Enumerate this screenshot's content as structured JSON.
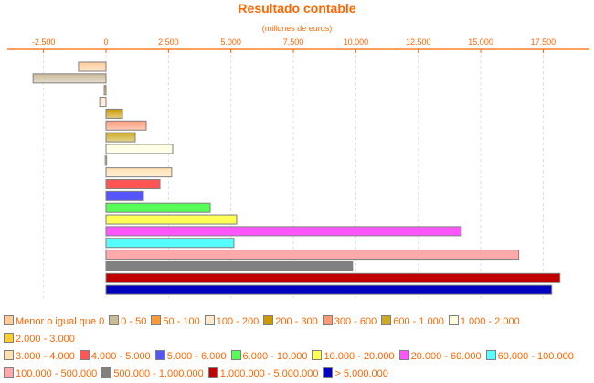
{
  "chart_data": {
    "type": "bar",
    "orientation": "horizontal",
    "title": "Resultado contable",
    "subtitle": "(millones de euros)",
    "xlim": [
      -3950,
      19350
    ],
    "ticks": [
      -2500,
      0,
      2500,
      5000,
      7500,
      10000,
      12500,
      15000,
      17500
    ],
    "tick_labels": [
      "-2.500",
      "0",
      "2.500",
      "5.000",
      "7.500",
      "10.000",
      "12.500",
      "15.000",
      "17.500"
    ],
    "grid": true,
    "legend_position": "bottom",
    "categories": [
      "Menor o igual que 0",
      "0 - 50",
      "50 - 100",
      "100 - 200",
      "200 - 300",
      "300 - 600",
      "600 - 1.000",
      "1.000 - 2.000",
      "2.000 - 3.000",
      "3.000 - 4.000",
      "4.000 - 5.000",
      "5.000 - 6.000",
      "6.000 - 10.000",
      "10.000 - 20.000",
      "20.000 - 60.000",
      "60.000 - 100.000",
      "100.000 - 500.000",
      "500.000 - 1.000.000",
      "1.000.000 - 5.000.000",
      "> 5.000.000"
    ],
    "values": [
      -1100,
      -2920,
      -70,
      -250,
      660,
      1610,
      1170,
      2670,
      -30,
      2630,
      2160,
      1500,
      4170,
      5230,
      14220,
      5120,
      16520,
      9870,
      18170,
      17840
    ],
    "colors": [
      "#ffcc99",
      "#ccbb99",
      "#ff9933",
      "#ffe8cc",
      "#cc9900",
      "#ff9977",
      "#ccaa22",
      "#ffffdd",
      "#ffcc33",
      "#ffe0b0",
      "#ff5555",
      "#5555ff",
      "#55ff55",
      "#ffff55",
      "#ff55ff",
      "#55ffff",
      "#ffaaaa",
      "#808080",
      "#c00000",
      "#0000c0"
    ]
  }
}
